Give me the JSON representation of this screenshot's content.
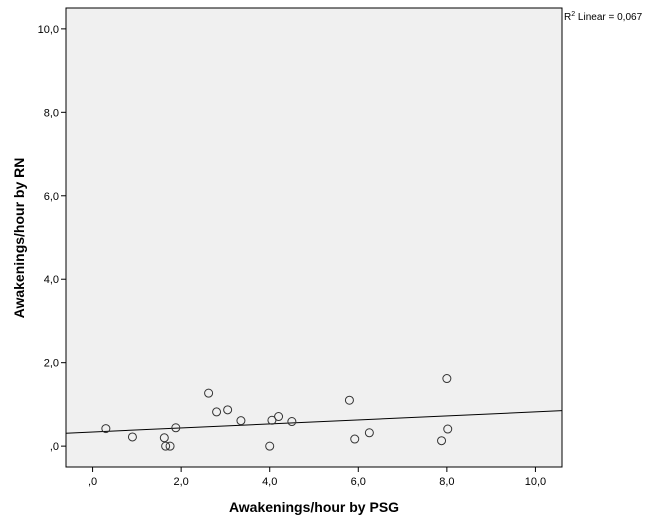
{
  "chart_data": {
    "type": "scatter",
    "xlabel": "Awakenings/hour by PSG",
    "ylabel": "Awakenings/hour by RN",
    "xlim": [
      -0.6,
      10.6
    ],
    "ylim": [
      -0.5,
      10.5
    ],
    "x_ticks": [
      0,
      2,
      4,
      6,
      8,
      10
    ],
    "y_ticks": [
      0,
      2,
      4,
      6,
      8,
      10
    ],
    "x_tick_labels": [
      ",0",
      "2,0",
      "4,0",
      "6,0",
      "8,0",
      "10,0"
    ],
    "y_tick_labels": [
      ",0",
      "2,0",
      "4,0",
      "6,0",
      "8,0",
      "10,0"
    ],
    "grid": false,
    "plot_background": "#f0f0f0",
    "marker": "open-circle",
    "annotation": {
      "prefix": "R",
      "superscript": "2",
      "text": " Linear = 0,067"
    },
    "points": [
      {
        "x": 0.3,
        "y": 0.42
      },
      {
        "x": 0.9,
        "y": 0.22
      },
      {
        "x": 1.62,
        "y": 0.2
      },
      {
        "x": 1.65,
        "y": 0.0
      },
      {
        "x": 1.75,
        "y": 0.0
      },
      {
        "x": 1.88,
        "y": 0.44
      },
      {
        "x": 2.62,
        "y": 1.27
      },
      {
        "x": 2.8,
        "y": 0.82
      },
      {
        "x": 3.05,
        "y": 0.87
      },
      {
        "x": 3.35,
        "y": 0.61
      },
      {
        "x": 4.0,
        "y": 0.0
      },
      {
        "x": 4.05,
        "y": 0.62
      },
      {
        "x": 4.2,
        "y": 0.71
      },
      {
        "x": 4.5,
        "y": 0.59
      },
      {
        "x": 5.8,
        "y": 1.1
      },
      {
        "x": 5.92,
        "y": 0.17
      },
      {
        "x": 6.25,
        "y": 0.32
      },
      {
        "x": 7.88,
        "y": 0.13
      },
      {
        "x": 8.0,
        "y": 1.62
      },
      {
        "x": 8.02,
        "y": 0.41
      }
    ],
    "fit_line": {
      "x": [
        -0.6,
        10.6
      ],
      "y": [
        0.31,
        0.85
      ]
    }
  }
}
